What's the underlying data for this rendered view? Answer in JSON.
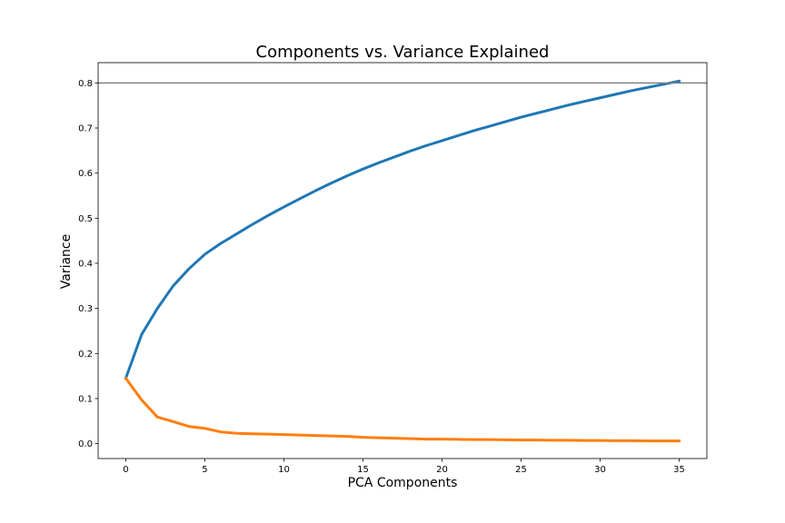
{
  "chart_data": {
    "type": "line",
    "title": "Components vs. Variance Explained",
    "xlabel": "PCA Components",
    "ylabel": "Variance",
    "xlim": [
      -1.75,
      36.75
    ],
    "ylim": [
      -0.033,
      0.845
    ],
    "xticks": [
      0,
      5,
      10,
      15,
      20,
      25,
      30,
      35
    ],
    "yticks": [
      0.0,
      0.1,
      0.2,
      0.3,
      0.4,
      0.5,
      0.6,
      0.7,
      0.8
    ],
    "grid": false,
    "hline": {
      "y": 0.8,
      "color": "#808080"
    },
    "x": [
      0,
      1,
      2,
      3,
      4,
      5,
      6,
      7,
      8,
      9,
      10,
      11,
      12,
      13,
      14,
      15,
      16,
      17,
      18,
      19,
      20,
      21,
      22,
      23,
      24,
      25,
      26,
      27,
      28,
      29,
      30,
      31,
      32,
      33,
      34,
      35
    ],
    "series": [
      {
        "color": "#1f77b4",
        "values": [
          0.145,
          0.242,
          0.3,
          0.35,
          0.388,
          0.42,
          0.444,
          0.465,
          0.486,
          0.506,
          0.525,
          0.543,
          0.561,
          0.578,
          0.594,
          0.609,
          0.623,
          0.636,
          0.649,
          0.661,
          0.672,
          0.683,
          0.694,
          0.704,
          0.714,
          0.724,
          0.733,
          0.742,
          0.751,
          0.759,
          0.767,
          0.775,
          0.783,
          0.79,
          0.797,
          0.804
        ]
      },
      {
        "color": "#ff7f0e",
        "values": [
          0.145,
          0.097,
          0.059,
          0.049,
          0.038,
          0.034,
          0.026,
          0.023,
          0.022,
          0.021,
          0.02,
          0.019,
          0.018,
          0.017,
          0.016,
          0.014,
          0.013,
          0.012,
          0.011,
          0.01,
          0.01,
          0.0095,
          0.009,
          0.009,
          0.0085,
          0.008,
          0.008,
          0.0075,
          0.0075,
          0.007,
          0.007,
          0.0065,
          0.0065,
          0.006,
          0.006,
          0.006
        ]
      }
    ]
  }
}
